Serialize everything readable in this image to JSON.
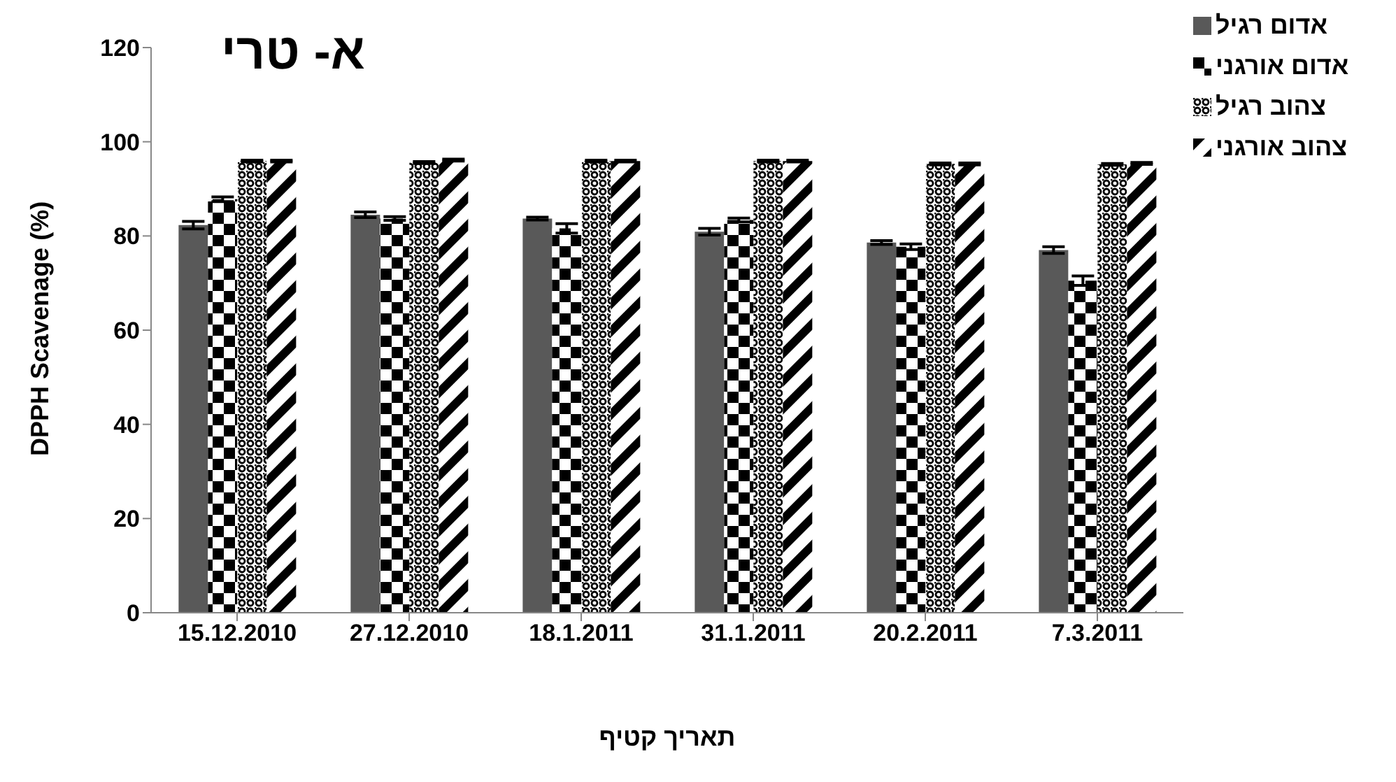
{
  "chart_data": {
    "type": "bar",
    "title": "א- טרי",
    "xlabel": "תאריך קטיף",
    "ylabel": "DPPH Scavenage (%)",
    "categories": [
      "15.12.2010",
      "27.12.2010",
      "18.1.2011",
      "31.1.2011",
      "20.2.2011",
      "7.3.2011"
    ],
    "series": [
      {
        "name": "אדום רגיל",
        "color": "#595959",
        "values": [
          82.3,
          84.5,
          83.7,
          80.9,
          78.6,
          77.0
        ],
        "errors": [
          0.8,
          0.6,
          0.3,
          0.7,
          0.4,
          0.7
        ]
      },
      {
        "name": "אדום אורגני",
        "color": "#000000",
        "values": [
          87.8,
          83.7,
          81.6,
          83.4,
          77.7,
          70.5
        ],
        "errors": [
          0.5,
          0.4,
          1.0,
          0.4,
          0.6,
          1.0
        ]
      },
      {
        "name": "צהוב רגיל",
        "color": "#000000",
        "values": [
          95.9,
          95.6,
          95.9,
          95.9,
          95.3,
          95.2
        ],
        "errors": [
          0.2,
          0.2,
          0.2,
          0.2,
          0.2,
          0.2
        ]
      },
      {
        "name": "צהוב אורגני",
        "color": "#000000",
        "values": [
          95.9,
          96.1,
          95.9,
          95.9,
          95.3,
          95.4
        ],
        "errors": [
          0.2,
          0.2,
          0.2,
          0.2,
          0.2,
          0.2
        ]
      }
    ],
    "ylim": [
      0,
      120
    ],
    "yticks": [
      0,
      20,
      40,
      60,
      80,
      100,
      120
    ],
    "grid": false,
    "legend": "top right"
  }
}
